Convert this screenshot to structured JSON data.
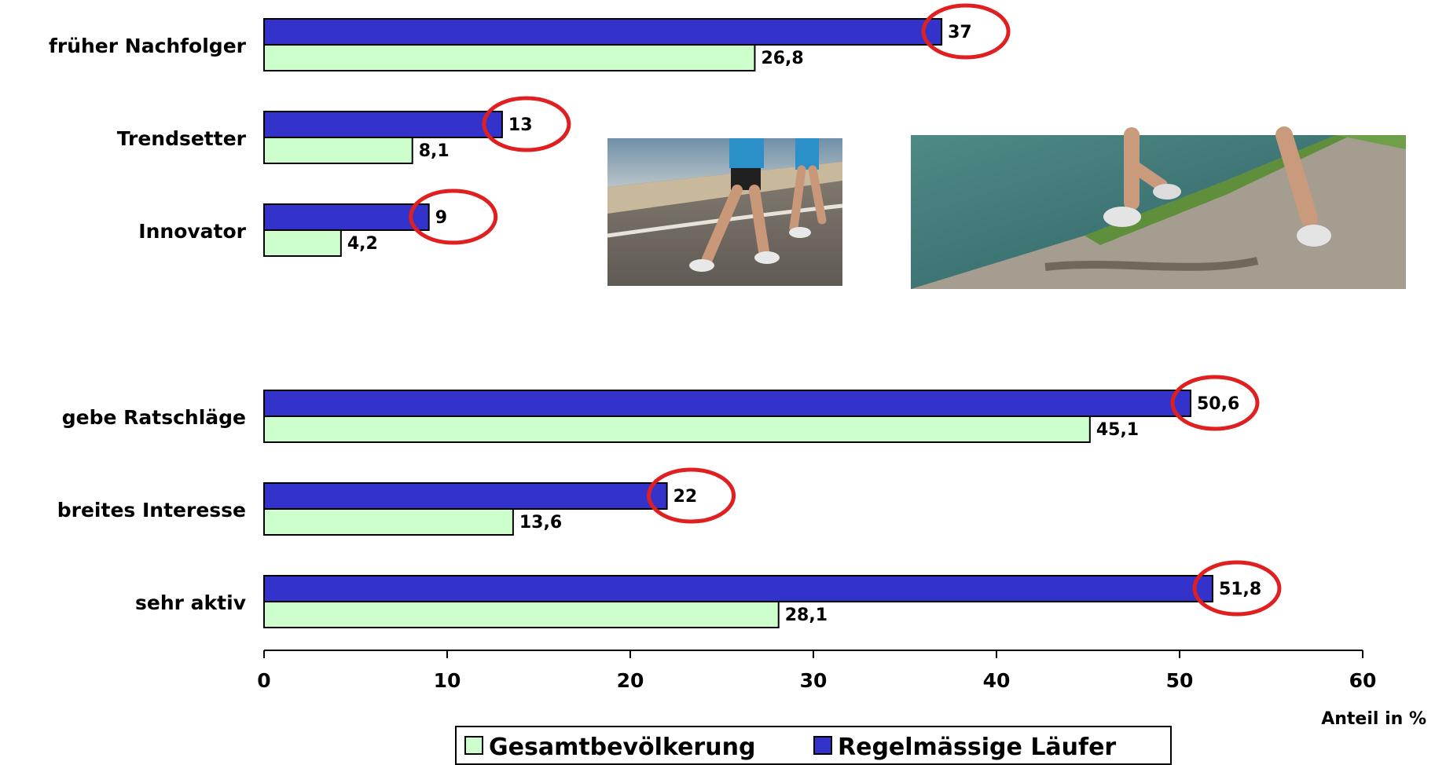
{
  "chart_data": {
    "type": "bar",
    "orientation": "horizontal",
    "title": "",
    "xlabel": "Anteil in %",
    "ylabel": "",
    "xlim": [
      0,
      60
    ],
    "x_ticks": [
      "0",
      "10",
      "20",
      "30",
      "40",
      "50",
      "60"
    ],
    "categories": [
      "früher Nachfolger",
      "Trendsetter",
      "Innovator",
      "gebe Ratschläge",
      "breites Interesse",
      "sehr aktiv"
    ],
    "series": [
      {
        "name": "Regelmässige Läufer",
        "color": "#3333cc",
        "values": [
          37,
          13,
          9,
          50.6,
          22,
          51.8
        ],
        "labels": [
          "37",
          "13",
          "9",
          "50,6",
          "22",
          "51,8"
        ]
      },
      {
        "name": "Gesamtbevölkerung",
        "color": "#ccffcc",
        "values": [
          26.8,
          8.1,
          4.2,
          45.1,
          13.6,
          28.1
        ],
        "labels": [
          "26,8",
          "8,1",
          "4,2",
          "45,1",
          "13,6",
          "28,1"
        ]
      }
    ],
    "highlight_color": "#e02020",
    "legend": {
      "position": "bottom-center",
      "entries": [
        "Gesamtbevölkerung",
        "Regelmässige Läufer"
      ]
    },
    "grid": false,
    "photos": [
      "runners-on-beach-road",
      "runners-on-lakeside-gravel-path"
    ]
  }
}
